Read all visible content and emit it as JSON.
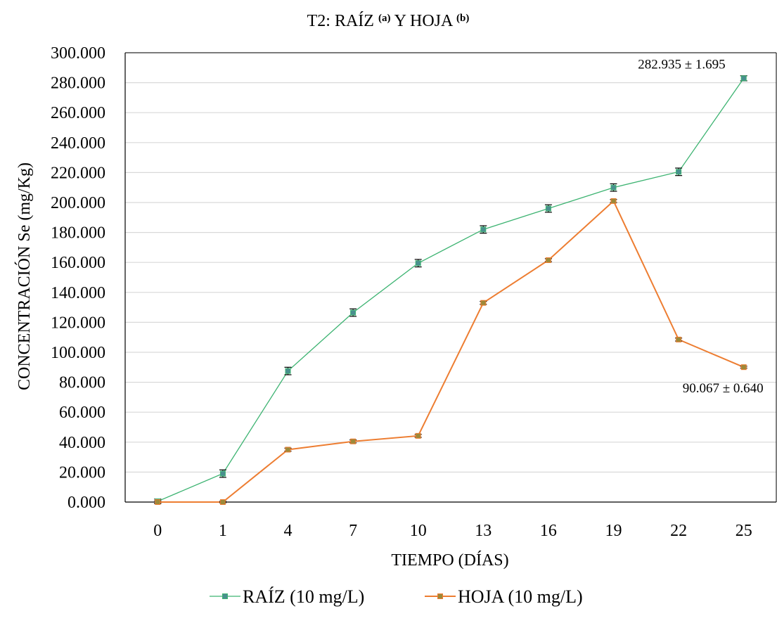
{
  "chart_data": {
    "type": "line",
    "title": {
      "part1": "T2: RAÍZ ",
      "sup1": "(a)",
      "part2": " Y HOJA ",
      "sup2": "(b)"
    },
    "xlabel": "TIEMPO (DÍAS)",
    "ylabel": "CONCENTRACIÓN Se (mg/Kg)",
    "categories": [
      "0",
      "1",
      "4",
      "7",
      "10",
      "13",
      "16",
      "19",
      "22",
      "25"
    ],
    "yticks": [
      "0.000",
      "20.000",
      "40.000",
      "60.000",
      "80.000",
      "100.000",
      "120.000",
      "140.000",
      "160.000",
      "180.000",
      "200.000",
      "220.000",
      "240.000",
      "260.000",
      "280.000",
      "300.000"
    ],
    "ylim": [
      0,
      300
    ],
    "grid": true,
    "legend_position": "bottom",
    "series": [
      {
        "name": "RAÍZ (10 mg/L)",
        "color": "#3cb371",
        "marker_color": "#4a8f8f",
        "values": [
          0.5,
          19,
          87.5,
          126.5,
          159.5,
          182,
          196,
          210,
          220.5,
          282.935
        ],
        "errors": [
          1.5,
          2.5,
          2.5,
          2.5,
          2.5,
          2.5,
          2.5,
          2.5,
          2.5,
          1.695
        ]
      },
      {
        "name": "HOJA (10 mg/L)",
        "color": "#ed7d31",
        "marker_color": "#9c8a3a",
        "values": [
          0,
          0,
          35,
          40.5,
          44.2,
          133,
          161.5,
          201,
          108.5,
          90.067
        ],
        "errors": [
          0.8,
          0.5,
          1,
          1,
          1,
          1,
          1,
          1,
          1,
          0.64
        ]
      }
    ],
    "annotations": [
      {
        "text": "282.935 ± 1.695",
        "series": 0,
        "point": 9
      },
      {
        "text": "90.067 ± 0.640",
        "series": 1,
        "point": 9
      }
    ]
  }
}
